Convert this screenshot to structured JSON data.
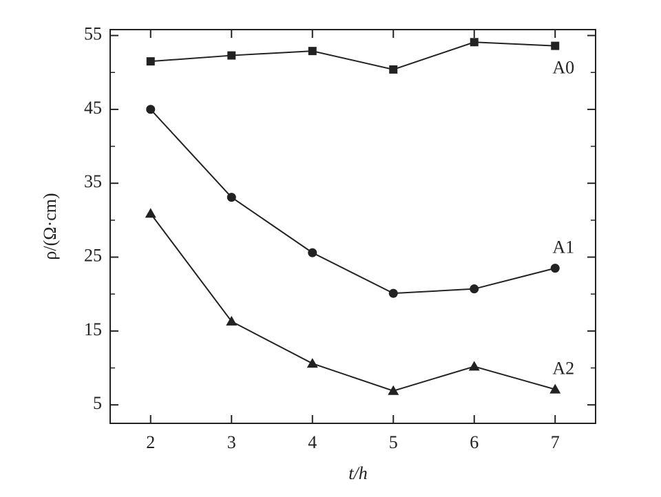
{
  "chart_data": {
    "type": "line",
    "x": [
      2,
      3,
      4,
      5,
      6,
      7
    ],
    "xlim": [
      1.5,
      7.5
    ],
    "xticks": [
      2,
      3,
      4,
      5,
      6,
      7
    ],
    "ylim": [
      2.5,
      55.8
    ],
    "yticks": [
      5,
      15,
      25,
      35,
      45,
      55
    ],
    "yminor_ticks": [
      10,
      20,
      30,
      40,
      50
    ],
    "xlabel": "t/h",
    "ylabel": "ρ/(Ω·cm)",
    "series": [
      {
        "name": "A0",
        "color": "#222222",
        "marker": "square",
        "values": [
          51.5,
          52.3,
          52.9,
          50.4,
          54.1,
          53.6
        ]
      },
      {
        "name": "A1",
        "color": "#222222",
        "marker": "circle",
        "values": [
          45,
          33.1,
          25.6,
          20.1,
          20.7,
          23.5
        ]
      },
      {
        "name": "A2",
        "color": "#222222",
        "marker": "triangle",
        "values": [
          30.9,
          16.3,
          10.6,
          6.9,
          10.2,
          7.1
        ]
      }
    ]
  }
}
